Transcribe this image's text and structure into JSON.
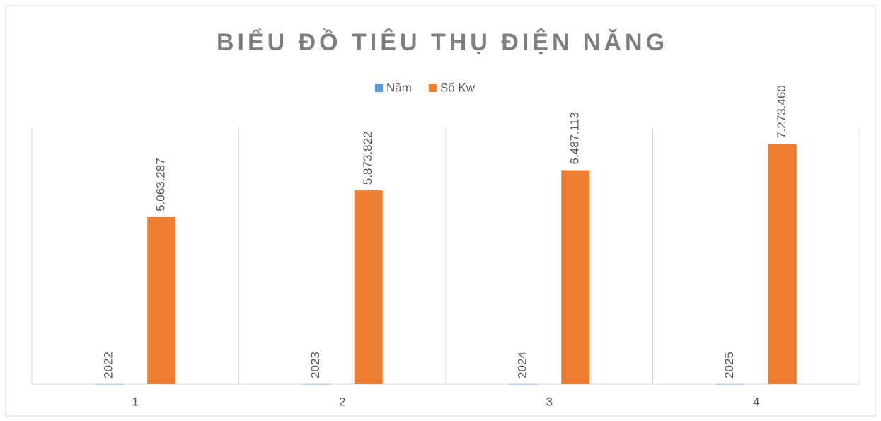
{
  "chart_data": {
    "type": "bar",
    "title": "BIỂU ĐỒ TIÊU THỤ ĐIỆN NĂNG",
    "categories": [
      "1",
      "2",
      "3",
      "4"
    ],
    "series": [
      {
        "name": "Năm",
        "color": "#5b9bd5",
        "values": [
          2022,
          2023,
          2024,
          2025
        ]
      },
      {
        "name": "Số Kw",
        "color": "#ed7d31",
        "values": [
          5063287,
          5873822,
          6487113,
          7273460
        ],
        "value_labels": [
          "5.063.287",
          "5.873.822",
          "6.487.113",
          "7.273.460"
        ]
      }
    ],
    "ylim": [
      0,
      8000000
    ],
    "legend": "top"
  }
}
